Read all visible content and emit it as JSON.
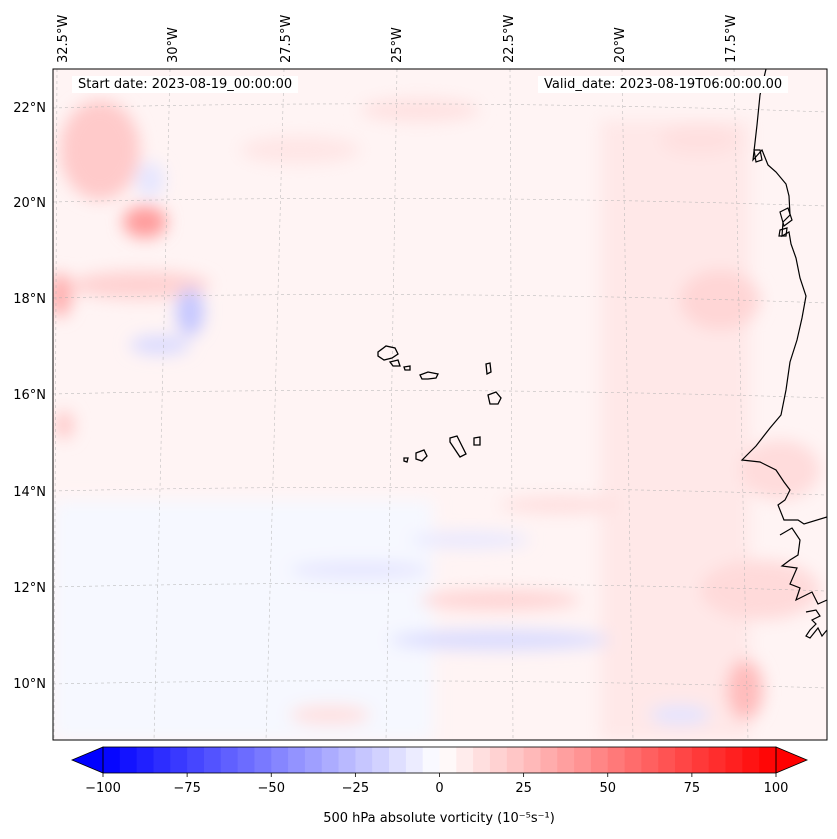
{
  "map": {
    "projection": "lambert-conformal",
    "start_date_text": "Start date: 2023-08-19_00:00:00",
    "valid_date_text": "Valid_date: 2023-08-19T06:00:00.00",
    "lon_labels": [
      "32.5°W",
      "30°W",
      "27.5°W",
      "25°W",
      "22.5°W",
      "20°W",
      "17.5°W"
    ],
    "lat_labels": [
      "22°N",
      "20°N",
      "18°N",
      "16°N",
      "14°N",
      "12°N",
      "10°N"
    ],
    "gridlines": true,
    "coastline_color": "#000000",
    "gridline_color": "#b0b0b0"
  },
  "field": {
    "variable": "500 hPa absolute vorticity",
    "units": "10^-5 s^-1",
    "colormap": "bwr",
    "colors": {
      "min": "#0000ff",
      "mid": "#ffffff",
      "max": "#ff0000"
    },
    "range": [
      -100,
      100
    ]
  },
  "colorbar": {
    "label": "500 hPa absolute vorticity (10⁻⁵s⁻¹)",
    "ticks": [
      "−100",
      "−75",
      "−50",
      "−25",
      "0",
      "25",
      "50",
      "75",
      "100"
    ],
    "tick_values": [
      -100,
      -75,
      -50,
      -25,
      0,
      25,
      50,
      75,
      100
    ],
    "extend": "both",
    "orientation": "horizontal"
  },
  "chart_data": {
    "type": "heatmap",
    "title": "",
    "xlabel": "",
    "ylabel": "",
    "x_ticks": [
      "32.5°W",
      "30°W",
      "27.5°W",
      "25°W",
      "22.5°W",
      "20°W",
      "17.5°W"
    ],
    "y_ticks": [
      "22°N",
      "20°N",
      "18°N",
      "16°N",
      "14°N",
      "12°N",
      "10°N"
    ],
    "colorbar_range": [
      -100,
      100
    ],
    "annotations": [
      "Start date: 2023-08-19_00:00:00",
      "Valid_date: 2023-08-19T06:00:00.00"
    ]
  }
}
